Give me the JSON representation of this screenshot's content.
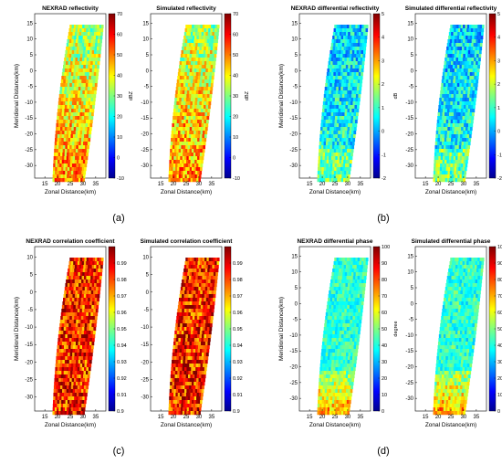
{
  "figure": {
    "panel_labels": [
      "(a)",
      "(b)",
      "(c)",
      "(d)"
    ]
  },
  "chart_data": [
    {
      "type": "heatmap",
      "panel": "(a)",
      "quantity": "reflectivity",
      "plots": [
        "NEXRAD reflectivity",
        "Simulated reflectivity"
      ],
      "xlabel": "Zonal Distance(km)",
      "ylabel": "Meridional Distance(km)",
      "xticks": [
        15,
        20,
        25,
        30,
        35
      ],
      "yticks": [
        15,
        10,
        5,
        0,
        -5,
        -10,
        -15,
        -20,
        -25,
        -30
      ],
      "colorbar_label": "dBZ",
      "colorbar_ticks": [
        70,
        60,
        50,
        40,
        30,
        20,
        10,
        0,
        -10
      ],
      "clim": [
        -10,
        70
      ],
      "colormap": "jet",
      "grid": false
    },
    {
      "type": "heatmap",
      "panel": "(b)",
      "quantity": "differential reflectivity",
      "plots": [
        "NEXRAD differential reflectivity",
        "Simulated differential reflectivity"
      ],
      "xlabel": "Zonal Distance(km)",
      "ylabel": "Meridional Distance(km)",
      "xticks": [
        15,
        20,
        25,
        30,
        35
      ],
      "yticks": [
        15,
        10,
        5,
        0,
        -5,
        -10,
        -15,
        -20,
        -25,
        -30
      ],
      "colorbar_label": "dB",
      "colorbar_ticks": [
        5,
        4,
        3,
        2,
        1,
        0,
        -1,
        -2
      ],
      "clim": [
        -2,
        5
      ],
      "colormap": "jet",
      "grid": false
    },
    {
      "type": "heatmap",
      "panel": "(c)",
      "quantity": "correlation coefficient",
      "plots": [
        "NEXRAD correlation coefficient",
        "Simulated correlation coefficient"
      ],
      "xlabel": "Zonal Distance(km)",
      "ylabel": "Meridional Distance(km)",
      "xticks": [
        15,
        20,
        25,
        30,
        35
      ],
      "yticks": [
        10,
        5,
        0,
        -5,
        -10,
        -15,
        -20,
        -25,
        -30
      ],
      "colorbar_label": "",
      "colorbar_ticks": [
        0.99,
        0.98,
        0.97,
        0.96,
        0.95,
        0.94,
        0.93,
        0.92,
        0.91,
        0.9
      ],
      "clim": [
        0.9,
        1.0
      ],
      "colormap": "jet",
      "grid": false
    },
    {
      "type": "heatmap",
      "panel": "(d)",
      "quantity": "differential phase",
      "plots": [
        "NEXRAD differential phase",
        "Simulated differential phase"
      ],
      "xlabel": "Zonal Distance(km)",
      "ylabel": "Meridional Distance(km)",
      "xticks": [
        15,
        20,
        25,
        30,
        35
      ],
      "yticks": [
        15,
        10,
        5,
        0,
        -5,
        -10,
        -15,
        -20,
        -25,
        -30
      ],
      "colorbar_label": "degree",
      "colorbar_ticks": [
        100,
        90,
        80,
        70,
        60,
        50,
        40,
        30,
        20,
        10,
        0
      ],
      "clim": [
        0,
        100
      ],
      "colormap": "jet",
      "grid": false
    }
  ]
}
